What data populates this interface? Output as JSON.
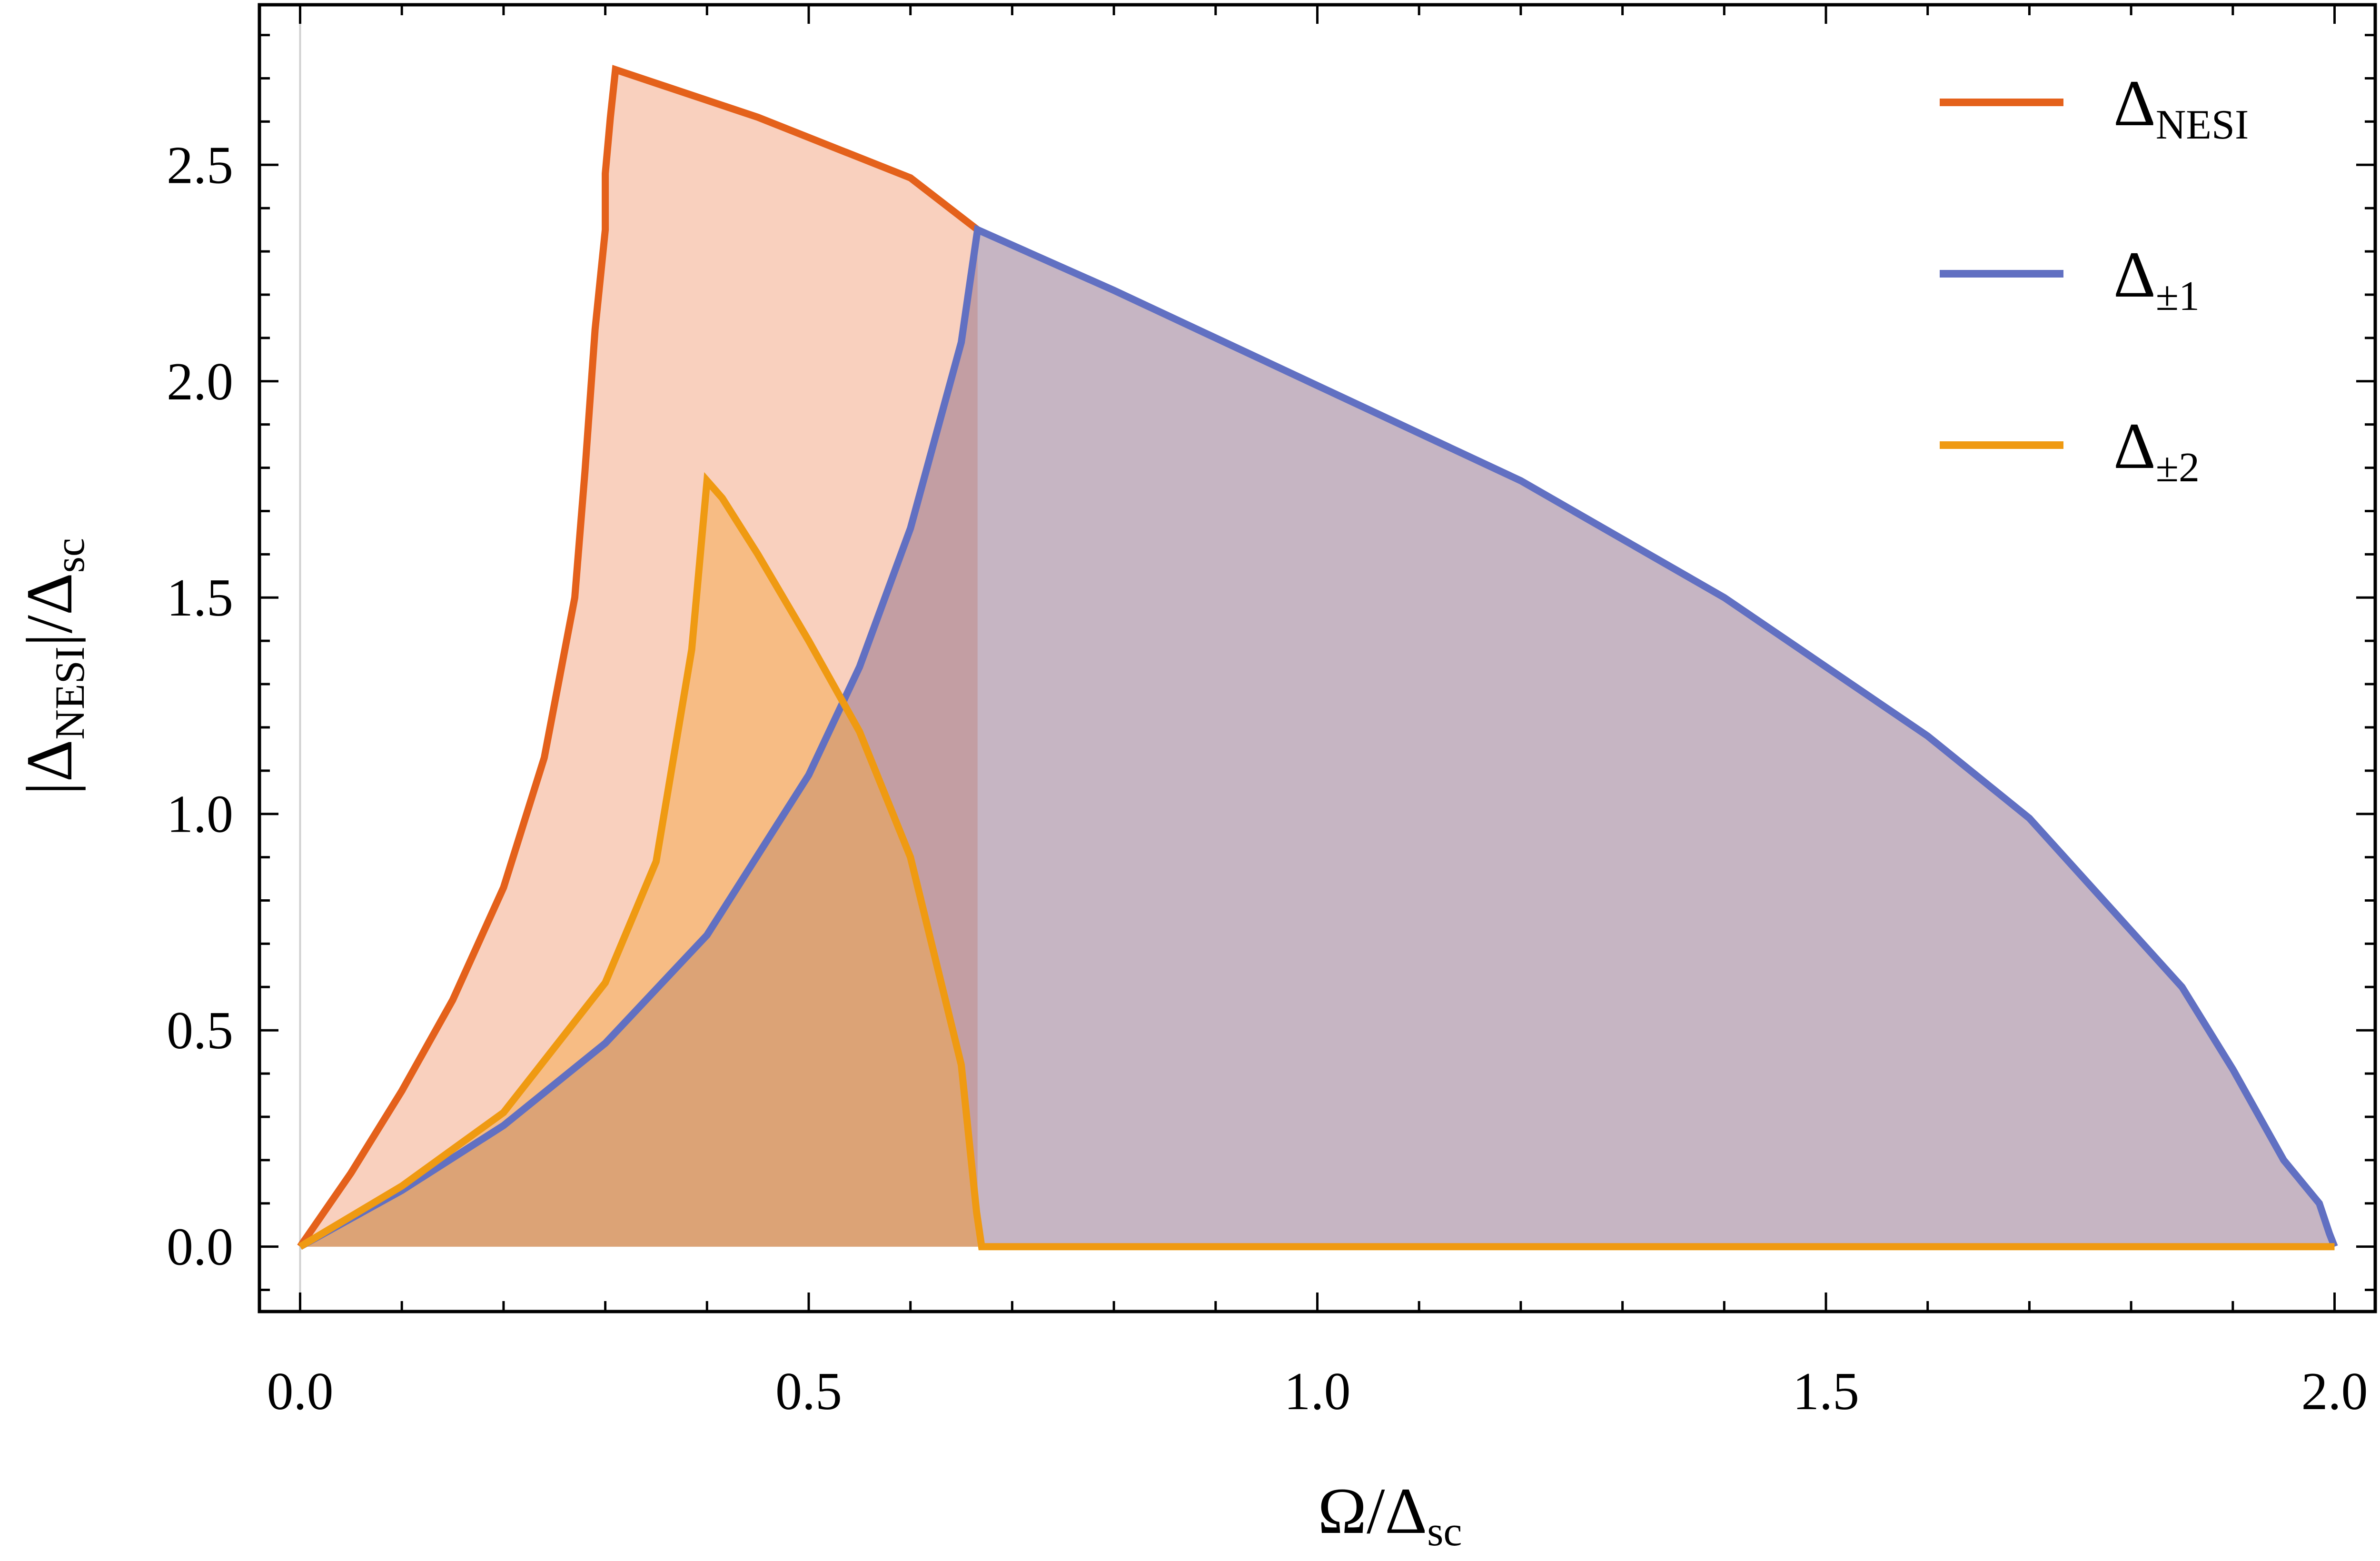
{
  "chart_data": {
    "type": "area",
    "title": "",
    "xlabel": {
      "main": "Ω/Δ",
      "sub": "sc"
    },
    "ylabel": {
      "prefix": "|Δ",
      "sub1": "NESI",
      "middle": "|/Δ",
      "sub2": "sc"
    },
    "xlim": [
      -0.04,
      2.04
    ],
    "ylim": [
      -0.15,
      2.87
    ],
    "x_ticks": [
      0,
      0.5,
      1.0,
      1.5,
      2.0
    ],
    "x_tick_labels": [
      "0.0",
      "0.5",
      "1.0",
      "1.5",
      "2.0"
    ],
    "y_ticks": [
      0,
      0.5,
      1.0,
      1.5,
      2.0,
      2.5
    ],
    "y_tick_labels": [
      "0.0",
      "0.5",
      "1.0",
      "1.5",
      "2.0",
      "2.5"
    ],
    "minor_step_x": 0.1,
    "minor_step_y": 0.1,
    "grid": false,
    "legend_position": "top-right",
    "series": [
      {
        "name": "NESI",
        "legend_main": "Δ",
        "legend_sub": "NESI",
        "color": "#e4611b",
        "fill": "#f3a27e",
        "fill_opacity": 0.5,
        "points": [
          [
            0,
            0
          ],
          [
            0.05,
            0.17
          ],
          [
            0.1,
            0.36
          ],
          [
            0.15,
            0.57
          ],
          [
            0.2,
            0.83
          ],
          [
            0.24,
            1.13
          ],
          [
            0.27,
            1.5
          ],
          [
            0.28,
            1.79
          ],
          [
            0.29,
            2.12
          ],
          [
            0.3,
            2.35
          ],
          [
            0.3,
            2.48
          ],
          [
            0.305,
            2.61
          ],
          [
            0.31,
            2.72
          ],
          [
            0.45,
            2.61
          ],
          [
            0.6,
            2.47
          ],
          [
            0.666,
            2.35
          ]
        ]
      },
      {
        "name": "±1",
        "legend_main": "Δ",
        "legend_sub": "±1",
        "color": "#6170c2",
        "fill": "#8d6b87",
        "fill_opacity": 0.5,
        "points": [
          [
            0,
            0
          ],
          [
            0.1,
            0.13
          ],
          [
            0.2,
            0.28
          ],
          [
            0.3,
            0.47
          ],
          [
            0.4,
            0.72
          ],
          [
            0.5,
            1.09
          ],
          [
            0.55,
            1.34
          ],
          [
            0.6,
            1.66
          ],
          [
            0.65,
            2.09
          ],
          [
            0.666,
            2.35
          ],
          [
            0.8,
            2.21
          ],
          [
            1.0,
            1.99
          ],
          [
            1.2,
            1.77
          ],
          [
            1.4,
            1.5
          ],
          [
            1.6,
            1.18
          ],
          [
            1.7,
            0.99
          ],
          [
            1.8,
            0.73
          ],
          [
            1.85,
            0.6
          ],
          [
            1.9,
            0.41
          ],
          [
            1.95,
            0.2
          ],
          [
            1.985,
            0.1
          ],
          [
            1.995,
            0.03
          ],
          [
            2.0,
            0.0
          ]
        ]
      },
      {
        "name": "±2",
        "legend_main": "Δ",
        "legend_sub": "±2",
        "color": "#ef9a12",
        "fill": "#f5a74a",
        "fill_opacity": 0.5,
        "points": [
          [
            0,
            0
          ],
          [
            0.1,
            0.14
          ],
          [
            0.2,
            0.31
          ],
          [
            0.3,
            0.61
          ],
          [
            0.35,
            0.89
          ],
          [
            0.385,
            1.38
          ],
          [
            0.4,
            1.77
          ],
          [
            0.415,
            1.73
          ],
          [
            0.45,
            1.6
          ],
          [
            0.5,
            1.4
          ],
          [
            0.55,
            1.19
          ],
          [
            0.6,
            0.9
          ],
          [
            0.65,
            0.42
          ],
          [
            0.665,
            0.08
          ],
          [
            0.67,
            0.0
          ],
          [
            1.0,
            0.0
          ],
          [
            1.5,
            0.0
          ],
          [
            2.0,
            0.0
          ]
        ]
      }
    ]
  }
}
